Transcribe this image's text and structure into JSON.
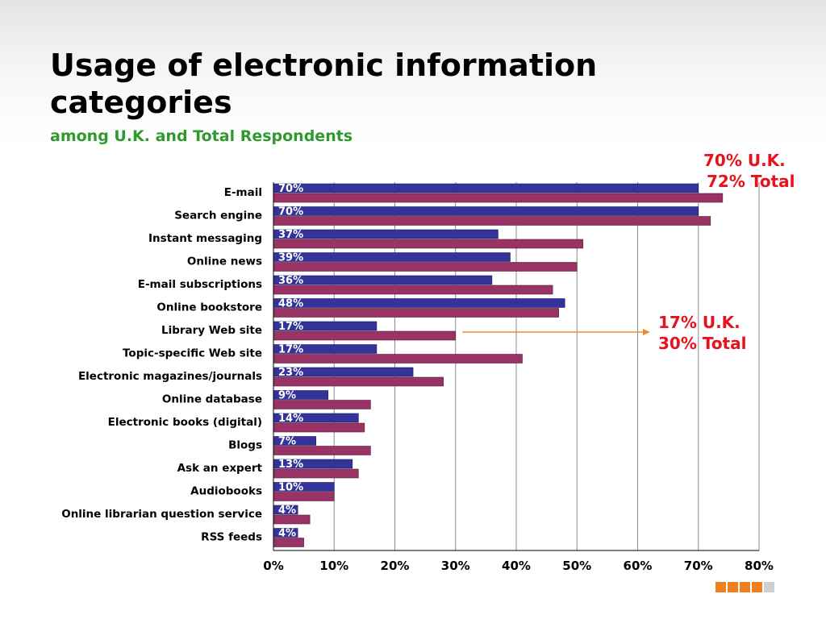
{
  "slide": {
    "title": "Usage of electronic information categories",
    "subtitle": "among U.K. and Total Respondents"
  },
  "callouts": {
    "top": {
      "line1": "70% U.K.",
      "line2": "72% Total"
    },
    "middle": {
      "line1": "17% U.K.",
      "line2": "30% Total"
    }
  },
  "colors": {
    "uk_series": "#343399",
    "total_series": "#993366",
    "title": "#000000",
    "subtitle": "#2e9a2e",
    "callout": "#e8121c",
    "arrow": "#ef8a2e",
    "footer_squares": [
      "#f07f1e",
      "#f07f1e",
      "#f07f1e",
      "#f07f1e",
      "#cfcfcf"
    ]
  },
  "chart_data": {
    "type": "bar",
    "orientation": "horizontal",
    "categories": [
      "E-mail",
      "Search engine",
      "Instant messaging",
      "Online news",
      "E-mail subscriptions",
      "Online bookstore",
      "Library Web site",
      "Topic-specific Web site",
      "Electronic magazines/journals",
      "Online database",
      "Electronic books (digital)",
      "Blogs",
      "Ask an expert",
      "Audiobooks",
      "Online librarian question service",
      "RSS feeds"
    ],
    "series": [
      {
        "values": [
          70,
          70,
          37,
          39,
          36,
          48,
          17,
          17,
          23,
          9,
          14,
          7,
          13,
          10,
          4,
          4
        ],
        "data_labels": [
          "70%",
          "70%",
          "37%",
          "39%",
          "36%",
          "48%",
          "17%",
          "17%",
          "23%",
          "9%",
          "14%",
          "7%",
          "13%",
          "10%",
          "4%",
          "4%"
        ]
      },
      {
        "values": [
          74,
          72,
          51,
          50,
          46,
          47,
          30,
          41,
          28,
          16,
          15,
          16,
          14,
          10,
          6,
          5
        ]
      }
    ],
    "xlim": [
      0,
      80
    ],
    "x_ticks": [
      "0%",
      "10%",
      "20%",
      "30%",
      "40%",
      "50%",
      "60%",
      "70%",
      "80%"
    ],
    "grid": true
  }
}
